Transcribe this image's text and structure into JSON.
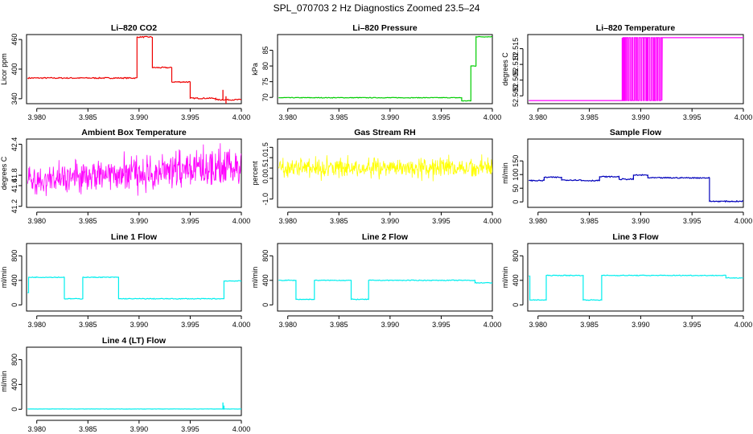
{
  "figure_title": "SPL_070703  2 Hz Diagnostics Zoomed 23.5–24",
  "chart_data": [
    {
      "type": "line",
      "title": "Li–820 CO2",
      "ylabel": "Licor ppm",
      "color": "#ee0000",
      "xlim": [
        3.979,
        4.0
      ],
      "ylim": [
        330,
        470
      ],
      "xticks": [
        3.98,
        3.985,
        3.99,
        3.995,
        4.0
      ],
      "xtick_labels": [
        "3.980",
        "3.985",
        "3.990",
        "3.995",
        "4.000"
      ],
      "yticks": [
        340,
        400,
        460
      ],
      "ytick_labels": [
        "340",
        "400",
        "460"
      ],
      "segments": [
        [
          3.9791,
          3.9898,
          382
        ],
        [
          3.9898,
          3.9913,
          465
        ],
        [
          3.9913,
          3.9932,
          403
        ],
        [
          3.9932,
          3.995,
          374
        ],
        [
          3.995,
          3.9975,
          341
        ],
        [
          3.9975,
          4.0,
          338
        ]
      ],
      "noise": 1.2,
      "spikes": [
        [
          3.9982,
          338,
          358
        ],
        [
          3.9985,
          345,
          330
        ]
      ]
    },
    {
      "type": "line",
      "title": "Li–820 Pressure",
      "ylabel": "kPa",
      "color": "#00cc00",
      "xlim": [
        3.979,
        4.0
      ],
      "ylim": [
        68,
        90
      ],
      "xticks": [
        3.98,
        3.985,
        3.99,
        3.995,
        4.0
      ],
      "xtick_labels": [
        "3.980",
        "3.985",
        "3.990",
        "3.995",
        "4.000"
      ],
      "yticks": [
        70,
        75,
        80,
        85
      ],
      "ytick_labels": [
        "70",
        "75",
        "80",
        "85"
      ],
      "segments": [
        [
          3.9791,
          3.997,
          69.9
        ],
        [
          3.997,
          3.9979,
          68.9
        ],
        [
          3.9979,
          3.9984,
          80
        ],
        [
          3.9984,
          4.0,
          89.3
        ]
      ],
      "noise": 0.1,
      "spikes": []
    },
    {
      "type": "square",
      "title": "Li–820 Temperature",
      "ylabel": "degrees C",
      "color": "#ff00ff",
      "xlim": [
        3.979,
        4.0
      ],
      "ylim": [
        52.4975,
        52.5195
      ],
      "xticks": [
        3.98,
        3.985,
        3.99,
        3.995,
        4.0
      ],
      "xtick_labels": [
        "3.980",
        "3.985",
        "3.990",
        "3.995",
        "4.000"
      ],
      "yticks": [
        52.5,
        52.505,
        52.51,
        52.515
      ],
      "ytick_labels": [
        "52.500",
        "52.505",
        "52.510",
        "52.515"
      ],
      "low": 52.4985,
      "high": 52.5185,
      "switch_start": 3.9882,
      "switch_end": 3.9921,
      "high_after": 3.9921
    },
    {
      "type": "noise",
      "title": "Ambient Box Temperature",
      "ylabel": "degrees C",
      "color": "#ff00ff",
      "xlim": [
        3.979,
        4.0
      ],
      "ylim": [
        41.18,
        42.5
      ],
      "xticks": [
        3.98,
        3.985,
        3.99,
        3.995,
        4.0
      ],
      "xtick_labels": [
        "3.980",
        "3.985",
        "3.990",
        "3.995",
        "4.000"
      ],
      "yticks": [
        41.2,
        41.6,
        41.8,
        42.4
      ],
      "ytick_labels": [
        "41.2",
        "41.6",
        "41.8",
        "42.4"
      ],
      "mean_start": 41.68,
      "mean_end": 41.98,
      "amp_start": 0.3,
      "amp_end": 0.45
    },
    {
      "type": "noise",
      "title": "Gas Stream RH",
      "ylabel": "percent",
      "color": "#ffff00",
      "xlim": [
        3.979,
        4.0
      ],
      "ylim": [
        -1.4,
        1.9
      ],
      "xticks": [
        3.98,
        3.985,
        3.99,
        3.995,
        4.0
      ],
      "xtick_labels": [
        "3.980",
        "3.985",
        "3.990",
        "3.995",
        "4.000"
      ],
      "yticks": [
        -1.0,
        0.0,
        0.5,
        1.0,
        1.5
      ],
      "ytick_labels": [
        "-1.0",
        "0.0",
        "0.5",
        "1.0",
        "1.5"
      ],
      "mean_start": 0.5,
      "mean_end": 0.5,
      "amp_start": 0.55,
      "amp_end": 0.55
    },
    {
      "type": "line",
      "title": "Sample Flow",
      "ylabel": "ml/min",
      "color": "#0000bb",
      "xlim": [
        3.979,
        4.0
      ],
      "ylim": [
        -20,
        230
      ],
      "xticks": [
        3.98,
        3.985,
        3.99,
        3.995,
        4.0
      ],
      "xtick_labels": [
        "3.980",
        "3.985",
        "3.990",
        "3.995",
        "4.000"
      ],
      "yticks": [
        0,
        50,
        100,
        150
      ],
      "ytick_labels": [
        "0",
        "50",
        "100",
        "150"
      ],
      "segments": [
        [
          3.9791,
          3.9806,
          78
        ],
        [
          3.9806,
          3.9823,
          90
        ],
        [
          3.9823,
          3.9842,
          80
        ],
        [
          3.9842,
          3.986,
          78
        ],
        [
          3.986,
          3.9879,
          92
        ],
        [
          3.9879,
          3.9893,
          83
        ],
        [
          3.9893,
          3.9907,
          98
        ],
        [
          3.9907,
          3.9967,
          88
        ],
        [
          3.9967,
          4.0,
          2
        ]
      ],
      "noise": 2.0,
      "spikes": []
    },
    {
      "type": "line",
      "title": "Line 1 Flow",
      "ylabel": "ml/min",
      "color": "#00eeee",
      "xlim": [
        3.979,
        4.0
      ],
      "ylim": [
        -100,
        1000
      ],
      "xticks": [
        3.98,
        3.985,
        3.99,
        3.995,
        4.0
      ],
      "xtick_labels": [
        "3.980",
        "3.985",
        "3.990",
        "3.995",
        "4.000"
      ],
      "yticks": [
        0,
        400,
        800
      ],
      "ytick_labels": [
        "0",
        "400",
        "800"
      ],
      "segments": [
        [
          3.9791,
          3.9792,
          200
        ],
        [
          3.9792,
          3.9827,
          450
        ],
        [
          3.9827,
          3.9845,
          100
        ],
        [
          3.9845,
          3.988,
          450
        ],
        [
          3.988,
          3.9983,
          100
        ],
        [
          3.9983,
          4.0,
          390
        ]
      ],
      "noise": 6,
      "spikes": []
    },
    {
      "type": "line",
      "title": "Line 2 Flow",
      "ylabel": "ml/min",
      "color": "#00eeee",
      "xlim": [
        3.979,
        4.0
      ],
      "ylim": [
        -100,
        1000
      ],
      "xticks": [
        3.98,
        3.985,
        3.99,
        3.995,
        4.0
      ],
      "xtick_labels": [
        "3.980",
        "3.985",
        "3.990",
        "3.995",
        "4.000"
      ],
      "yticks": [
        0,
        400,
        800
      ],
      "ytick_labels": [
        "0",
        "400",
        "800"
      ],
      "segments": [
        [
          3.9791,
          3.9808,
          400
        ],
        [
          3.9808,
          3.9826,
          90
        ],
        [
          3.9826,
          3.9862,
          400
        ],
        [
          3.9862,
          3.9879,
          90
        ],
        [
          3.9879,
          3.9983,
          400
        ],
        [
          3.9983,
          4.0,
          360
        ]
      ],
      "noise": 6,
      "spikes": []
    },
    {
      "type": "line",
      "title": "Line 3 Flow",
      "ylabel": "ml/min",
      "color": "#00eeee",
      "xlim": [
        3.979,
        4.0
      ],
      "ylim": [
        -100,
        1000
      ],
      "xticks": [
        3.98,
        3.985,
        3.99,
        3.995,
        4.0
      ],
      "xtick_labels": [
        "3.980",
        "3.985",
        "3.990",
        "3.995",
        "4.000"
      ],
      "yticks": [
        0,
        400,
        800
      ],
      "ytick_labels": [
        "0",
        "400",
        "800"
      ],
      "segments": [
        [
          3.9791,
          3.9792,
          470
        ],
        [
          3.9792,
          3.9808,
          80
        ],
        [
          3.9808,
          3.9844,
          480
        ],
        [
          3.9844,
          3.9862,
          80
        ],
        [
          3.9862,
          3.9983,
          480
        ],
        [
          3.9983,
          4.0,
          440
        ]
      ],
      "noise": 6,
      "spikes": []
    },
    {
      "type": "line",
      "title": "Line 4 (LT) Flow",
      "ylabel": "ml/min",
      "color": "#00eeee",
      "xlim": [
        3.979,
        4.0
      ],
      "ylim": [
        -100,
        1000
      ],
      "xticks": [
        3.98,
        3.985,
        3.99,
        3.995,
        4.0
      ],
      "xtick_labels": [
        "3.980",
        "3.985",
        "3.990",
        "3.995",
        "4.000"
      ],
      "yticks": [
        0,
        400,
        800
      ],
      "ytick_labels": [
        "0",
        "400",
        "800"
      ],
      "segments": [
        [
          3.9791,
          4.0,
          5
        ]
      ],
      "noise": 2,
      "spikes": [
        [
          3.9982,
          5,
          110
        ],
        [
          3.9983,
          5,
          60
        ]
      ]
    }
  ]
}
